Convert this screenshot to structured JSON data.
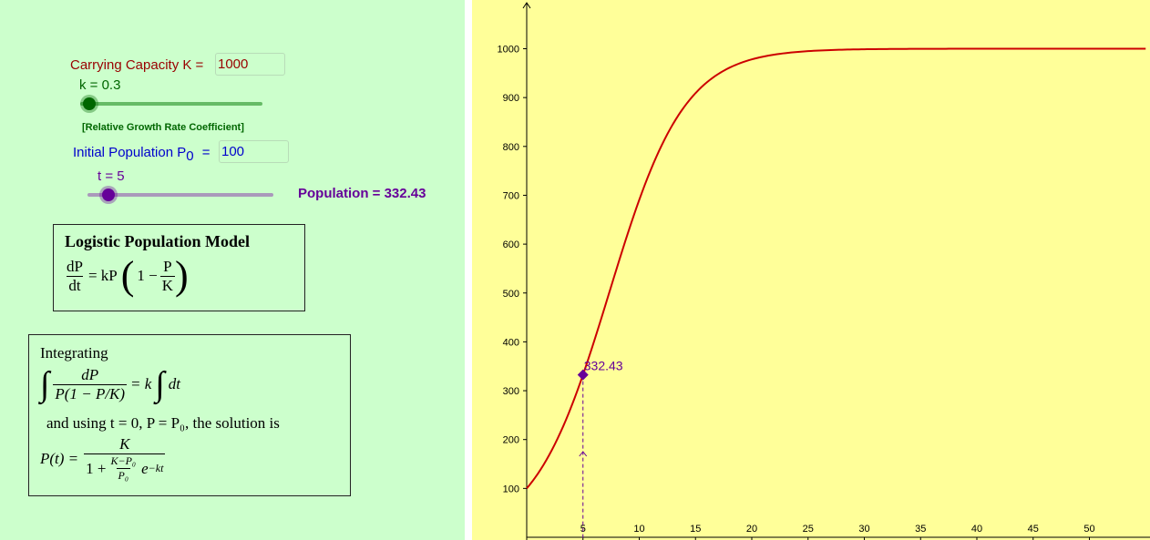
{
  "controls": {
    "capacity_label": "Carrying Capacity K =",
    "capacity_value": "1000",
    "k_slider_label": "k = 0.3",
    "k_slider_value": 0.3,
    "k_caption": "[Relative Growth Rate Coefficient]",
    "initial_label_main": "Initial Population P",
    "initial_label_sub": "0",
    "initial_label_eq": "=",
    "initial_value": "100",
    "t_slider_label": "t = 5",
    "t_slider_value": 5,
    "population_text": "Population = 332.43"
  },
  "model_box": {
    "title": "Logistic Population Model",
    "dP": "dP",
    "dt": "dt",
    "eq_kP": "= kP",
    "one_minus": "1 −",
    "P": "P",
    "K": "K"
  },
  "integration_box": {
    "line1": "Integrating",
    "integral_num": "dP",
    "integral_den": "P(1 − P/K)",
    "eq_k": "= k",
    "dt": "dt",
    "line3": "and using t = 0, P = P₀, the solution is",
    "pt": "P(t) =",
    "sol_num": "K",
    "sol_den_pre": "1 +",
    "sol_inner_num": "K−P₀",
    "sol_inner_den": "P₀",
    "sol_exp": "e",
    "sol_exp_sup": "−kt"
  },
  "colors": {
    "left_bg": "#ccffcc",
    "graph_bg": "#ffff99",
    "curve": "#cc0000",
    "point": "#660099",
    "capacity_label": "#990000",
    "k_color": "#006600",
    "initial_color": "#0000cc",
    "t_color": "#660099"
  },
  "chart_data": {
    "type": "line",
    "x_ticks": [
      "5",
      "10",
      "15",
      "20",
      "25",
      "30",
      "35",
      "40",
      "45",
      "50"
    ],
    "y_ticks": [
      "100",
      "200",
      "300",
      "400",
      "500",
      "600",
      "700",
      "800",
      "900",
      "1000"
    ],
    "xlim": [
      0,
      55
    ],
    "ylim": [
      0,
      1100
    ],
    "K": 1000,
    "k": 0.3,
    "P0": 100,
    "point": {
      "x": 5,
      "y": 332.43,
      "label": "332.43"
    },
    "grid": false
  }
}
